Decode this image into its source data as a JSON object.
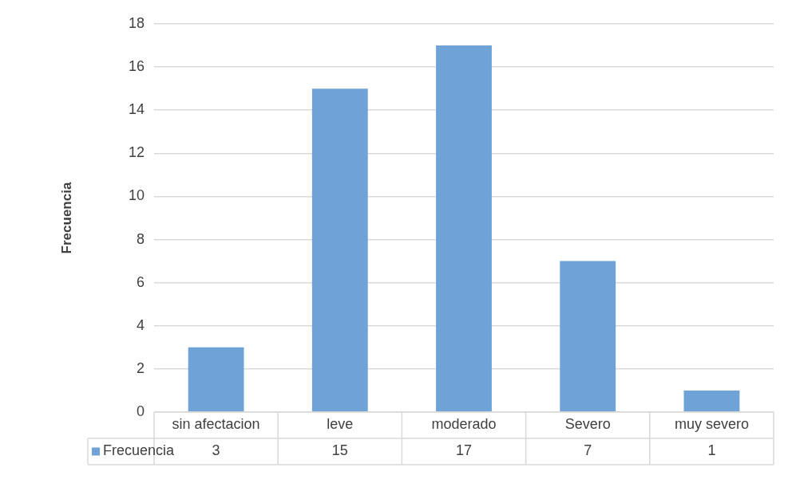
{
  "chart_data": {
    "type": "bar",
    "ylabel": "Frecuencia",
    "categories": [
      "sin afectacion",
      "leve",
      "moderado",
      "Severo",
      "muy severo"
    ],
    "series": [
      {
        "name": "Frecuencia",
        "color": "#6fa3d8",
        "values": [
          3,
          15,
          17,
          7,
          1
        ]
      }
    ],
    "ylim": [
      0,
      18
    ],
    "yticks": [
      0,
      2,
      4,
      6,
      8,
      10,
      12,
      14,
      16,
      18
    ],
    "grid": "y",
    "legend": "bottom",
    "data_labels": true
  }
}
